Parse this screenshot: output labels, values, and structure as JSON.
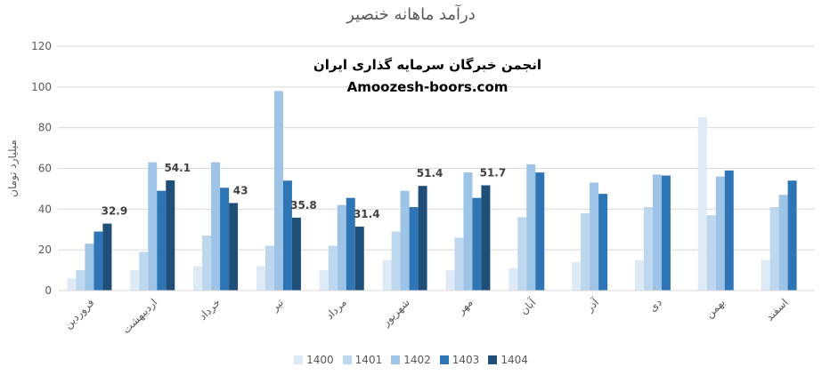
{
  "chart_data": {
    "type": "bar",
    "title": "درآمد ماهانه خنصیر",
    "ylabel": "میلیارد تومان",
    "xlabel": "",
    "ylim": [
      0,
      120
    ],
    "yticks": [
      0,
      20,
      40,
      60,
      80,
      100,
      120
    ],
    "grid": true,
    "legend_position": "bottom",
    "categories": [
      "فروردین",
      "اردیبهشت",
      "خرداد",
      "تیر",
      "مرداد",
      "شهریور",
      "مهر",
      "آبان",
      "آذر",
      "دی",
      "بهمن",
      "اسفند"
    ],
    "series": [
      {
        "name": "1400",
        "color": "#deebf7",
        "values": [
          6,
          10,
          12,
          12,
          10,
          15,
          10,
          11,
          14,
          15,
          85,
          15
        ]
      },
      {
        "name": "1401",
        "color": "#bdd7ee",
        "values": [
          10,
          19,
          27,
          22,
          22,
          29,
          26,
          36,
          38,
          41,
          37,
          41
        ]
      },
      {
        "name": "1402",
        "color": "#9dc3e6",
        "values": [
          23,
          63,
          63,
          98,
          42,
          49,
          58,
          62,
          53,
          57,
          56,
          47
        ]
      },
      {
        "name": "1403",
        "color": "#2e75b6",
        "values": [
          29,
          49,
          50.5,
          54,
          45.5,
          41,
          45.5,
          58,
          47.5,
          56.5,
          59,
          54
        ]
      },
      {
        "name": "1404",
        "color": "#1f4e79",
        "values": [
          32.9,
          54.1,
          43,
          35.8,
          31.4,
          51.4,
          51.7,
          null,
          null,
          null,
          null,
          null
        ]
      }
    ],
    "data_labels": [
      {
        "category": "فروردین",
        "series": "1404",
        "text": "32.9"
      },
      {
        "category": "اردیبهشت",
        "series": "1404",
        "text": "54.1"
      },
      {
        "category": "خرداد",
        "series": "1404",
        "text": "43"
      },
      {
        "category": "تیر",
        "series": "1404",
        "text": "35.8"
      },
      {
        "category": "مرداد",
        "series": "1404",
        "text": "31.4"
      },
      {
        "category": "شهریور",
        "series": "1404",
        "text": "51.4"
      },
      {
        "category": "مهر",
        "series": "1404",
        "text": "51.7"
      }
    ]
  },
  "watermark": {
    "line1": "انجمن خبرگان سرمایه گذاری ایران",
    "line2": "Amoozesh-boors.com"
  }
}
